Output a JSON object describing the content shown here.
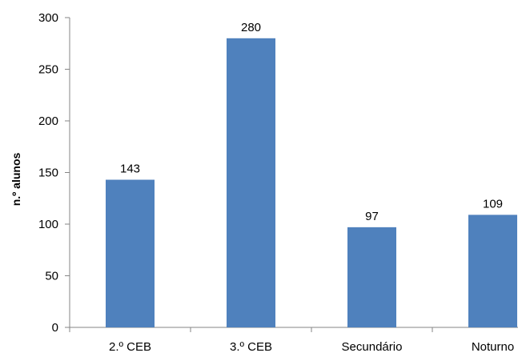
{
  "chart_data": {
    "type": "bar",
    "title": "",
    "xlabel": "",
    "ylabel": "n.º alunos",
    "categories": [
      "2.º CEB",
      "3.º CEB",
      "Secundário",
      "Noturno"
    ],
    "values": [
      143,
      280,
      97,
      109
    ],
    "ylim": [
      0,
      300
    ],
    "yticks": [
      0,
      50,
      100,
      150,
      200,
      250,
      300
    ],
    "grid": false,
    "legend": "none",
    "bar_color": "#4F81BD",
    "axis_color": "#868686"
  }
}
